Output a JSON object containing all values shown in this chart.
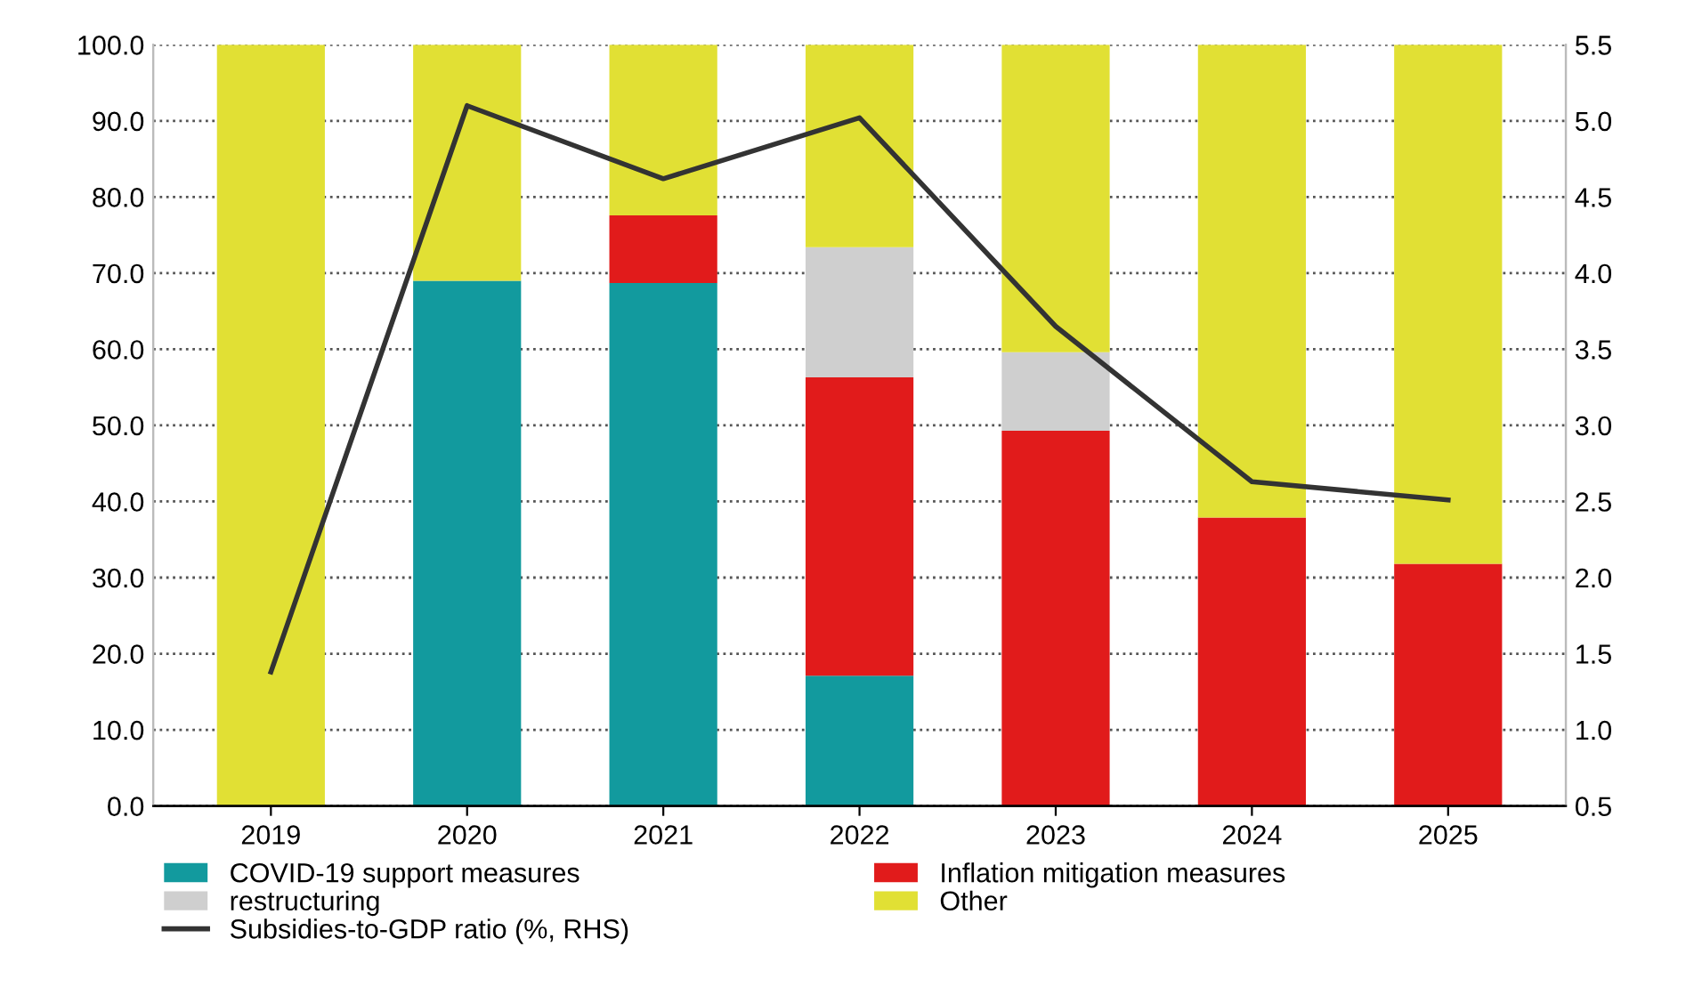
{
  "chart_data": {
    "type": "bar",
    "stacked": true,
    "categories": [
      "2019",
      "2020",
      "2021",
      "2022",
      "2023",
      "2024",
      "2025"
    ],
    "series": [
      {
        "name": "COVID-19 support measures",
        "color": "#129a9e",
        "values": [
          0,
          69.0,
          68.7,
          17.1,
          0,
          0,
          0
        ]
      },
      {
        "name": "Inflation mitigation measures",
        "color": "#e11b1b",
        "values": [
          0,
          0,
          8.9,
          39.2,
          49.3,
          37.9,
          31.8
        ]
      },
      {
        "name": "restructuring",
        "color": "#cfcfcf",
        "values": [
          0,
          0,
          0,
          17.1,
          10.3,
          0,
          0
        ]
      },
      {
        "name": "Other",
        "color": "#e1e034",
        "values": [
          100.0,
          31.0,
          22.4,
          26.6,
          40.4,
          62.1,
          68.2
        ]
      },
      {
        "name": "Subsidies-to-GDP ratio (%, RHS)",
        "type": "line",
        "axis": "y2",
        "color": "#333333",
        "marker": "none",
        "line_style": "solid",
        "values": [
          1.38,
          5.1,
          4.62,
          5.02,
          3.65,
          2.63,
          2.51
        ]
      }
    ],
    "ylim": [
      0,
      100
    ],
    "yticks": [
      {
        "value": 0,
        "label": "0.0"
      },
      {
        "value": 10,
        "label": "10.0"
      },
      {
        "value": 20,
        "label": "20.0"
      },
      {
        "value": 30,
        "label": "30.0"
      },
      {
        "value": 40,
        "label": "40.0"
      },
      {
        "value": 50,
        "label": "50.0"
      },
      {
        "value": 60,
        "label": "60.0"
      },
      {
        "value": 70,
        "label": "70.0"
      },
      {
        "value": 80,
        "label": "80.0"
      },
      {
        "value": 90,
        "label": "90.0"
      },
      {
        "value": 100,
        "label": "100.0"
      }
    ],
    "y2lim": [
      0.5,
      5.5
    ],
    "y2ticks": [
      0.5,
      {
        "value": 1,
        "label": "1.0"
      },
      1.5,
      {
        "value": 2,
        "label": "2.0"
      },
      2.5,
      {
        "value": 3,
        "label": "3.0"
      },
      3.5,
      {
        "value": 4,
        "label": "4.0"
      },
      4.5,
      {
        "value": 5,
        "label": "5.0"
      },
      5.5
    ],
    "grid": "y",
    "legend": "bottom"
  }
}
